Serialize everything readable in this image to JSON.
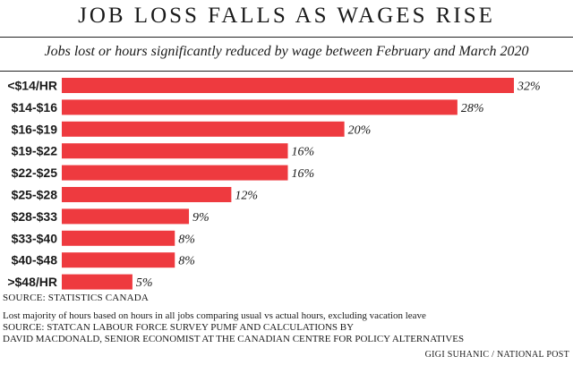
{
  "header": {
    "title": "JOB LOSS FALLS AS WAGES RISE",
    "subtitle": "Jobs lost or hours significantly reduced by wage between February and March 2020"
  },
  "chart_data": {
    "type": "bar",
    "orientation": "horizontal",
    "categories": [
      "<$14/HR",
      "$14-$16",
      "$16-$19",
      "$19-$22",
      "$22-$25",
      "$25-$28",
      "$28-$33",
      "$33-$40",
      "$40-$48",
      ">$48/HR"
    ],
    "values": [
      32,
      28,
      20,
      16,
      16,
      12,
      9,
      8,
      8,
      5
    ],
    "value_labels": [
      "32%",
      "28%",
      "20%",
      "16%",
      "16%",
      "12%",
      "9%",
      "8%",
      "8%",
      "5%"
    ],
    "xlim": [
      0,
      32
    ],
    "bar_color": "#ee3a3f",
    "grid": false,
    "legend": "none"
  },
  "footer": {
    "source1": "SOURCE: STATISTICS CANADA",
    "note_lines": [
      "Lost majority of hours based on hours in all jobs comparing usual vs actual hours, excluding vacation leave",
      "SOURCE: STATCAN LABOUR FORCE SURVEY  PUMF AND CALCULATIONS BY",
      "DAVID MACDONALD, SENIOR ECONOMIST AT THE CANADIAN CENTRE FOR POLICY ALTERNATIVES"
    ],
    "credit": "GIGI SUHANIC / NATIONAL POST"
  }
}
